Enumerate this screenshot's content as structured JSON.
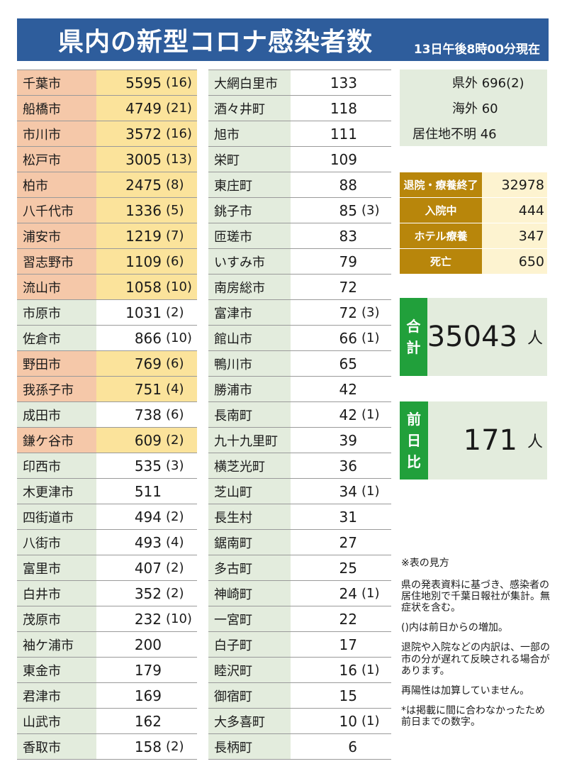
{
  "header": {
    "title": "県内の新型コロナ感染者数",
    "as_of": "13日午後8時00分現在"
  },
  "left_table": [
    {
      "name": "千葉市",
      "count": "5595",
      "inc": "(16)",
      "hl": true
    },
    {
      "name": "船橋市",
      "count": "4749",
      "inc": "(21)",
      "hl": true
    },
    {
      "name": "市川市",
      "count": "3572",
      "inc": "(16)",
      "hl": true
    },
    {
      "name": "松戸市",
      "count": "3005",
      "inc": "(13)",
      "hl": true
    },
    {
      "name": "柏市",
      "count": "2475",
      "inc": "(8)",
      "hl": true
    },
    {
      "name": "八千代市",
      "count": "1336",
      "inc": "(5)",
      "hl": true
    },
    {
      "name": "浦安市",
      "count": "1219",
      "inc": "(7)",
      "hl": true
    },
    {
      "name": "習志野市",
      "count": "1109",
      "inc": "(6)",
      "hl": true
    },
    {
      "name": "流山市",
      "count": "1058",
      "inc": "(10)",
      "hl": true
    },
    {
      "name": "市原市",
      "count": "1031",
      "inc": "(2)",
      "hl": false
    },
    {
      "name": "佐倉市",
      "count": "866",
      "inc": "(10)",
      "hl": false
    },
    {
      "name": "野田市",
      "count": "769",
      "inc": "(6)",
      "hl": true
    },
    {
      "name": "我孫子市",
      "count": "751",
      "inc": "(4)",
      "hl": true
    },
    {
      "name": "成田市",
      "count": "738",
      "inc": "(6)",
      "hl": false
    },
    {
      "name": "鎌ケ谷市",
      "count": "609",
      "inc": "(2)",
      "hl": true
    },
    {
      "name": "印西市",
      "count": "535",
      "inc": "(3)",
      "hl": false
    },
    {
      "name": "木更津市",
      "count": "511",
      "inc": "",
      "hl": false
    },
    {
      "name": "四街道市",
      "count": "494",
      "inc": "(2)",
      "hl": false
    },
    {
      "name": "八街市",
      "count": "493",
      "inc": "(4)",
      "hl": false
    },
    {
      "name": "富里市",
      "count": "407",
      "inc": "(2)",
      "hl": false
    },
    {
      "name": "白井市",
      "count": "352",
      "inc": "(2)",
      "hl": false
    },
    {
      "name": "茂原市",
      "count": "232",
      "inc": "(10)",
      "hl": false
    },
    {
      "name": "袖ケ浦市",
      "count": "200",
      "inc": "",
      "hl": false
    },
    {
      "name": "東金市",
      "count": "179",
      "inc": "",
      "hl": false
    },
    {
      "name": "君津市",
      "count": "169",
      "inc": "",
      "hl": false
    },
    {
      "name": "山武市",
      "count": "162",
      "inc": "",
      "hl": false
    },
    {
      "name": "香取市",
      "count": "158",
      "inc": "(2)",
      "hl": false
    }
  ],
  "mid_table": [
    {
      "name": "大網白里市",
      "count": "133",
      "inc": ""
    },
    {
      "name": "酒々井町",
      "count": "118",
      "inc": ""
    },
    {
      "name": "旭市",
      "count": "111",
      "inc": ""
    },
    {
      "name": "栄町",
      "count": "109",
      "inc": ""
    },
    {
      "name": "東庄町",
      "count": "88",
      "inc": ""
    },
    {
      "name": "銚子市",
      "count": "85",
      "inc": "(3)"
    },
    {
      "name": "匝瑳市",
      "count": "83",
      "inc": ""
    },
    {
      "name": "いすみ市",
      "count": "79",
      "inc": ""
    },
    {
      "name": "南房総市",
      "count": "72",
      "inc": ""
    },
    {
      "name": "富津市",
      "count": "72",
      "inc": "(3)"
    },
    {
      "name": "館山市",
      "count": "66",
      "inc": "(1)"
    },
    {
      "name": "鴨川市",
      "count": "65",
      "inc": ""
    },
    {
      "name": "勝浦市",
      "count": "42",
      "inc": ""
    },
    {
      "name": "長南町",
      "count": "42",
      "inc": "(1)"
    },
    {
      "name": "九十九里町",
      "count": "39",
      "inc": ""
    },
    {
      "name": "横芝光町",
      "count": "36",
      "inc": ""
    },
    {
      "name": "芝山町",
      "count": "34",
      "inc": "(1)"
    },
    {
      "name": "長生村",
      "count": "31",
      "inc": ""
    },
    {
      "name": "鋸南町",
      "count": "27",
      "inc": ""
    },
    {
      "name": "多古町",
      "count": "25",
      "inc": ""
    },
    {
      "name": "神崎町",
      "count": "24",
      "inc": "(1)"
    },
    {
      "name": "一宮町",
      "count": "22",
      "inc": ""
    },
    {
      "name": "白子町",
      "count": "17",
      "inc": ""
    },
    {
      "name": "睦沢町",
      "count": "16",
      "inc": "(1)"
    },
    {
      "name": "御宿町",
      "count": "15",
      "inc": ""
    },
    {
      "name": "大多喜町",
      "count": "10",
      "inc": "(1)"
    },
    {
      "name": "長柄町",
      "count": "6",
      "inc": ""
    }
  ],
  "other": {
    "out_of_pref": "県外 696(2)",
    "overseas": "海外 60",
    "unknown": "居住地不明 46"
  },
  "status": [
    {
      "label": "退院・療養終了",
      "value": "32978"
    },
    {
      "label": "入院中",
      "value": "444"
    },
    {
      "label": "ホテル療養",
      "value": "347"
    },
    {
      "label": "死亡",
      "value": "650"
    }
  ],
  "total": {
    "chars": [
      "合",
      "計"
    ],
    "value": "35043",
    "unit": "人"
  },
  "daily": {
    "chars": [
      "前",
      "日",
      "比"
    ],
    "value": "171",
    "unit": "人"
  },
  "notes": {
    "title": "※表の見方",
    "p1": "県の発表資料に基づき、感染者の居住地別で千葉日報社が集計。無症状を含む。",
    "p2": "()内は前日からの増加。",
    "p3": "退院や入院などの内訳は、一部の市の分が遅れて反映される場合があります。",
    "p4": "再陽性は加算していません。",
    "p5": "*は掲載に間に合わなかったため前日までの数字。"
  },
  "colors": {
    "header_bg": "#2e5d9c",
    "name_cell": "#e3ecdd",
    "hl_name": "#f5c8a9",
    "hl_value": "#fbe39b",
    "status_label": "#b8860b",
    "status_value": "#fdf3d0",
    "summary_label": "#21a03b"
  }
}
